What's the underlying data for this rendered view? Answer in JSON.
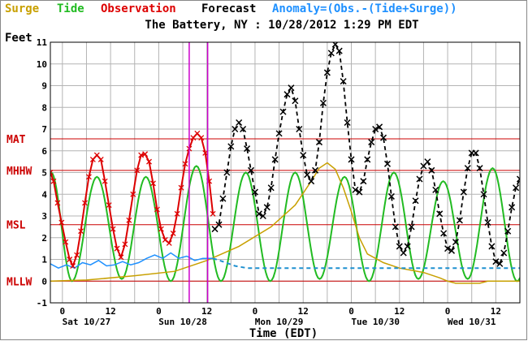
{
  "legend": {
    "surge": "Surge",
    "tide": "Tide",
    "observation": "Observation",
    "forecast": "Forecast",
    "anomaly": "Anomaly=(Obs.-(Tide+Surge))"
  },
  "colors": {
    "surge": "#c8a000",
    "tide": "#22bb22",
    "observation": "#dd0000",
    "forecast": "#000000",
    "anomaly": "#1e90ff",
    "anomaly_dashed": "#1e90d0",
    "datum": "#cc0000",
    "marker": "#cc00cc",
    "grid": "#b4b4b4"
  },
  "chart_data": {
    "type": "line",
    "title": "The Battery, NY : 10/28/2012 1:29 PM EDT",
    "xlabel": "Time (EDT)",
    "ylabel": "Feet",
    "ylim": [
      -1,
      11
    ],
    "xlim": [
      -3,
      114
    ],
    "x_units": "hours from 2012-10-27 00:00 EDT",
    "grid": true,
    "x_hour_ticks": [
      {
        "t": 0,
        "label": "0"
      },
      {
        "t": 12,
        "label": "12"
      },
      {
        "t": 24,
        "label": "0"
      },
      {
        "t": 36,
        "label": "12"
      },
      {
        "t": 48,
        "label": "0"
      },
      {
        "t": 60,
        "label": "12"
      },
      {
        "t": 72,
        "label": "0"
      },
      {
        "t": 84,
        "label": "12"
      },
      {
        "t": 96,
        "label": "0"
      },
      {
        "t": 108,
        "label": "12"
      }
    ],
    "x_day_labels": [
      {
        "t": 6,
        "label": "Sat 10/27"
      },
      {
        "t": 30,
        "label": "Sun 10/28"
      },
      {
        "t": 54,
        "label": "Mon 10/29"
      },
      {
        "t": 78,
        "label": "Tue 10/30"
      },
      {
        "t": 102,
        "label": "Wed 10/31"
      }
    ],
    "datums": [
      {
        "label": "MAT",
        "value": 6.55
      },
      {
        "label": "MHHW",
        "value": 5.1
      },
      {
        "label": "MSL",
        "value": 2.6
      },
      {
        "label": "MLLW",
        "value": 0
      }
    ],
    "vertical_markers": [
      31.6,
      36.2
    ],
    "observation_end": 37.5,
    "tide": {
      "highs": [
        [
          -2.8,
          5.0
        ],
        [
          8.6,
          4.8
        ],
        [
          20.8,
          4.8
        ],
        [
          33.4,
          5.3
        ],
        [
          45.7,
          5.0
        ],
        [
          58.0,
          5.0
        ],
        [
          70.3,
          4.8
        ],
        [
          82.6,
          5.0
        ],
        [
          94.9,
          4.6
        ],
        [
          107.2,
          5.2
        ],
        [
          119.5,
          4.5
        ]
      ],
      "lows": [
        [
          2.4,
          0.0
        ],
        [
          14.8,
          0.1
        ],
        [
          27.0,
          0.0
        ],
        [
          39.5,
          0.0
        ],
        [
          51.8,
          0.0
        ],
        [
          64.1,
          0.1
        ],
        [
          76.4,
          0.0
        ],
        [
          88.7,
          0.1
        ],
        [
          101.0,
          0.1
        ],
        [
          113.3,
          0.0
        ]
      ]
    },
    "surge": [
      [
        -3,
        0.0
      ],
      [
        6,
        0.05
      ],
      [
        18,
        0.25
      ],
      [
        28,
        0.45
      ],
      [
        36,
        0.95
      ],
      [
        44,
        1.6
      ],
      [
        52,
        2.5
      ],
      [
        58,
        3.5
      ],
      [
        62,
        4.6
      ],
      [
        64,
        5.2
      ],
      [
        66,
        5.45
      ],
      [
        68,
        5.15
      ],
      [
        70,
        4.3
      ],
      [
        72,
        3.2
      ],
      [
        74,
        2.0
      ],
      [
        76,
        1.25
      ],
      [
        80,
        0.85
      ],
      [
        84,
        0.6
      ],
      [
        90,
        0.4
      ],
      [
        94,
        0.15
      ],
      [
        96,
        0.0
      ],
      [
        98,
        -0.1
      ],
      [
        104,
        -0.1
      ],
      [
        106,
        0.0
      ],
      [
        114,
        0.0
      ]
    ],
    "anomaly": [
      [
        -3,
        0.8
      ],
      [
        -1,
        0.6
      ],
      [
        1,
        0.75
      ],
      [
        3,
        0.6
      ],
      [
        5,
        0.85
      ],
      [
        7,
        0.75
      ],
      [
        9,
        0.95
      ],
      [
        11,
        0.7
      ],
      [
        13,
        0.75
      ],
      [
        15,
        0.9
      ],
      [
        17,
        0.75
      ],
      [
        19,
        0.85
      ],
      [
        21,
        1.05
      ],
      [
        23,
        1.2
      ],
      [
        25,
        1.05
      ],
      [
        27,
        1.3
      ],
      [
        29,
        1.05
      ],
      [
        31,
        1.15
      ],
      [
        33,
        0.95
      ],
      [
        35,
        1.05
      ],
      [
        37.5,
        1.05
      ]
    ],
    "anomaly_forecast": [
      [
        37.5,
        1.05
      ],
      [
        40,
        0.9
      ],
      [
        43,
        0.7
      ],
      [
        46,
        0.6
      ],
      [
        114,
        0.6
      ]
    ],
    "observation": [
      [
        -3,
        5.0
      ],
      [
        -2.2,
        4.6
      ],
      [
        -1.2,
        3.6
      ],
      [
        -0.2,
        2.7
      ],
      [
        0.8,
        1.8
      ],
      [
        1.8,
        1.0
      ],
      [
        2.6,
        0.7
      ],
      [
        3.6,
        1.2
      ],
      [
        4.6,
        2.3
      ],
      [
        5.6,
        3.6
      ],
      [
        6.6,
        4.8
      ],
      [
        7.6,
        5.6
      ],
      [
        8.6,
        5.8
      ],
      [
        9.6,
        5.6
      ],
      [
        10.6,
        4.6
      ],
      [
        11.6,
        3.5
      ],
      [
        12.6,
        2.4
      ],
      [
        13.6,
        1.5
      ],
      [
        14.6,
        1.1
      ],
      [
        15.6,
        1.7
      ],
      [
        16.6,
        2.8
      ],
      [
        17.6,
        4.0
      ],
      [
        18.6,
        5.1
      ],
      [
        19.6,
        5.8
      ],
      [
        20.6,
        5.85
      ],
      [
        21.6,
        5.5
      ],
      [
        22.6,
        4.5
      ],
      [
        23.6,
        3.3
      ],
      [
        24.6,
        2.4
      ],
      [
        25.6,
        1.9
      ],
      [
        26.6,
        1.75
      ],
      [
        27.6,
        2.2
      ],
      [
        28.6,
        3.1
      ],
      [
        29.6,
        4.3
      ],
      [
        30.6,
        5.4
      ],
      [
        31.6,
        6.1
      ],
      [
        32.6,
        6.6
      ],
      [
        33.6,
        6.8
      ],
      [
        34.6,
        6.6
      ],
      [
        35.6,
        5.9
      ],
      [
        36.6,
        4.6
      ],
      [
        37.5,
        3.1
      ]
    ],
    "forecast_xmarks": [
      [
        38,
        2.4
      ],
      [
        39,
        2.6
      ],
      [
        40,
        3.8
      ],
      [
        41,
        5.0
      ],
      [
        42,
        6.2
      ],
      [
        43,
        7.0
      ],
      [
        44,
        7.3
      ],
      [
        45,
        7.0
      ],
      [
        46,
        6.1
      ],
      [
        47,
        5.1
      ],
      [
        48,
        4.1
      ],
      [
        49,
        3.1
      ],
      [
        50,
        3.0
      ],
      [
        51,
        3.4
      ],
      [
        52,
        4.3
      ],
      [
        53,
        5.6
      ],
      [
        54,
        6.8
      ],
      [
        55,
        7.8
      ],
      [
        56,
        8.6
      ],
      [
        57,
        8.9
      ],
      [
        58,
        8.3
      ],
      [
        59,
        7.0
      ],
      [
        60,
        5.8
      ],
      [
        61,
        4.9
      ],
      [
        62,
        4.6
      ],
      [
        63,
        5.1
      ],
      [
        64,
        6.4
      ],
      [
        65,
        8.2
      ],
      [
        66,
        9.6
      ],
      [
        67,
        10.5
      ],
      [
        68,
        10.9
      ],
      [
        69,
        10.6
      ],
      [
        70,
        9.2
      ],
      [
        71,
        7.3
      ],
      [
        72,
        5.6
      ],
      [
        73,
        4.2
      ],
      [
        74,
        4.1
      ],
      [
        75,
        4.6
      ],
      [
        76,
        5.6
      ],
      [
        77,
        6.4
      ],
      [
        78,
        7.0
      ],
      [
        79,
        7.1
      ],
      [
        80,
        6.6
      ],
      [
        81,
        5.4
      ],
      [
        82,
        3.9
      ],
      [
        83,
        2.5
      ],
      [
        84,
        1.6
      ],
      [
        85,
        1.3
      ],
      [
        86,
        1.6
      ],
      [
        87,
        2.5
      ],
      [
        88,
        3.7
      ],
      [
        89,
        4.7
      ],
      [
        90,
        5.3
      ],
      [
        91,
        5.5
      ],
      [
        92,
        5.1
      ],
      [
        93,
        4.2
      ],
      [
        94,
        3.1
      ],
      [
        95,
        2.2
      ],
      [
        96,
        1.5
      ],
      [
        97,
        1.4
      ],
      [
        98,
        1.8
      ],
      [
        99,
        2.8
      ],
      [
        100,
        4.1
      ],
      [
        101,
        5.2
      ],
      [
        102,
        5.9
      ],
      [
        103,
        5.9
      ],
      [
        104,
        5.2
      ],
      [
        105,
        4.0
      ],
      [
        106,
        2.7
      ],
      [
        107,
        1.6
      ],
      [
        108,
        0.9
      ],
      [
        109,
        0.8
      ],
      [
        110,
        1.3
      ],
      [
        111,
        2.3
      ],
      [
        112,
        3.4
      ],
      [
        113,
        4.3
      ],
      [
        114,
        4.7
      ]
    ]
  }
}
